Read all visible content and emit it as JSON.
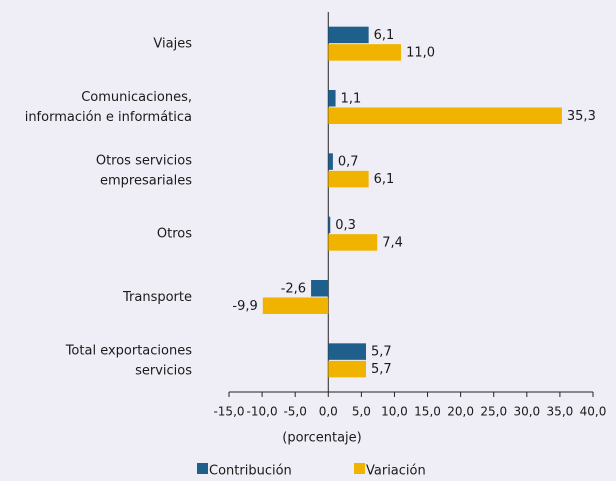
{
  "chart_data": {
    "type": "hbar",
    "categories": [
      "Viajes",
      "Comunicaciones,\ninformación e informática",
      "Otros servicios\nempresariales",
      "Otros",
      "Transporte",
      "Total exportaciones\nservicios"
    ],
    "series": [
      {
        "name": "Contribución",
        "color": "#1f5f8b",
        "values": [
          6.1,
          1.1,
          0.7,
          0.3,
          -2.6,
          5.7
        ],
        "value_labels": [
          "6,1",
          "1,1",
          "0,7",
          "0,3",
          "-2,6",
          "5,7"
        ]
      },
      {
        "name": "Variación",
        "color": "#f0b400",
        "values": [
          11.0,
          35.3,
          6.1,
          7.4,
          -9.9,
          5.7
        ],
        "value_labels": [
          "11,0",
          "35,3",
          "6,1",
          "7,4",
          "-9,9",
          "5,7"
        ]
      }
    ],
    "xlabel": "(porcentaje)",
    "xlim": [
      -15,
      40
    ],
    "xticks": [
      {
        "value": -15,
        "label": "-15,0"
      },
      {
        "value": -10,
        "label": "-10,0"
      },
      {
        "value": -5,
        "label": "-5,0"
      },
      {
        "value": 0,
        "label": "0,0"
      },
      {
        "value": 5,
        "label": "5,0"
      },
      {
        "value": 10,
        "label": "10,0"
      },
      {
        "value": 15,
        "label": "15,0"
      },
      {
        "value": 20,
        "label": "20,0"
      },
      {
        "value": 25,
        "label": "25,0"
      },
      {
        "value": 30,
        "label": "30,0"
      },
      {
        "value": 35,
        "label": "35,0"
      },
      {
        "value": 40,
        "label": "40,0"
      }
    ],
    "legend": "bottom"
  }
}
